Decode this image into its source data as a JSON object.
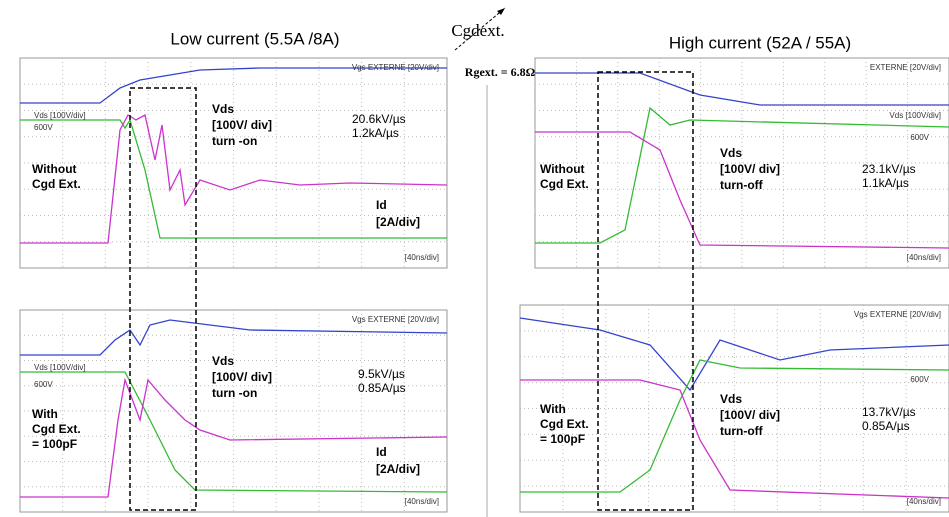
{
  "header": {
    "left_title": "Low current (5.5A /8A)",
    "middle_label": "Cgdext.",
    "rgext": "Rgext. = 6.8Ω",
    "right_title": "High current (52A / 55A)"
  },
  "panels": [
    {
      "vgs": "Vgs EXTERNE [20V/div]",
      "vds_scale": "Vds [100V/div]",
      "level": "600V",
      "condition": [
        "Without",
        "Cgd Ext."
      ],
      "vds": [
        "Vds",
        "[100V/ div]",
        "turn -on"
      ],
      "rates": [
        "20.6kV/µs",
        "1.2kA/µs"
      ],
      "id": [
        "Id",
        "[2A/div]"
      ],
      "timebase": "[40ns/div]"
    },
    {
      "vgs": "Vgs EXTERNE [20V/div]",
      "vds_scale": "Vds [100V/div]",
      "level": "600V",
      "condition": [
        "With",
        "Cgd Ext.",
        "= 100pF"
      ],
      "vds": [
        "Vds",
        "[100V/ div]",
        "turn -on"
      ],
      "rates": [
        "9.5kV/µs",
        "0.85A/µs"
      ],
      "id": [
        "Id",
        "[2A/div]"
      ],
      "timebase": "[40ns/div]"
    },
    {
      "vgs": "EXTERNE [20V/div]",
      "vds_scale": "Vds [100V/div]",
      "level": "600V",
      "condition": [
        "Without",
        "Cgd Ext."
      ],
      "vds": [
        "Vds",
        "[100V/ div]",
        "turn-off"
      ],
      "rates": [
        "23.1kV/µs",
        "1.1kA/µs"
      ],
      "timebase": "[40ns/div]"
    },
    {
      "vgs": "Vgs EXTERNE [20V/div]",
      "level": "600V",
      "condition": [
        "With",
        "Cgd Ext.",
        "= 100pF"
      ],
      "vds": [
        "Vds",
        "[100V/ div]",
        "turn-off"
      ],
      "rates": [
        "13.7kV/µs",
        "0.85A/µs"
      ],
      "timebase": "[40ns/div]"
    }
  ]
}
